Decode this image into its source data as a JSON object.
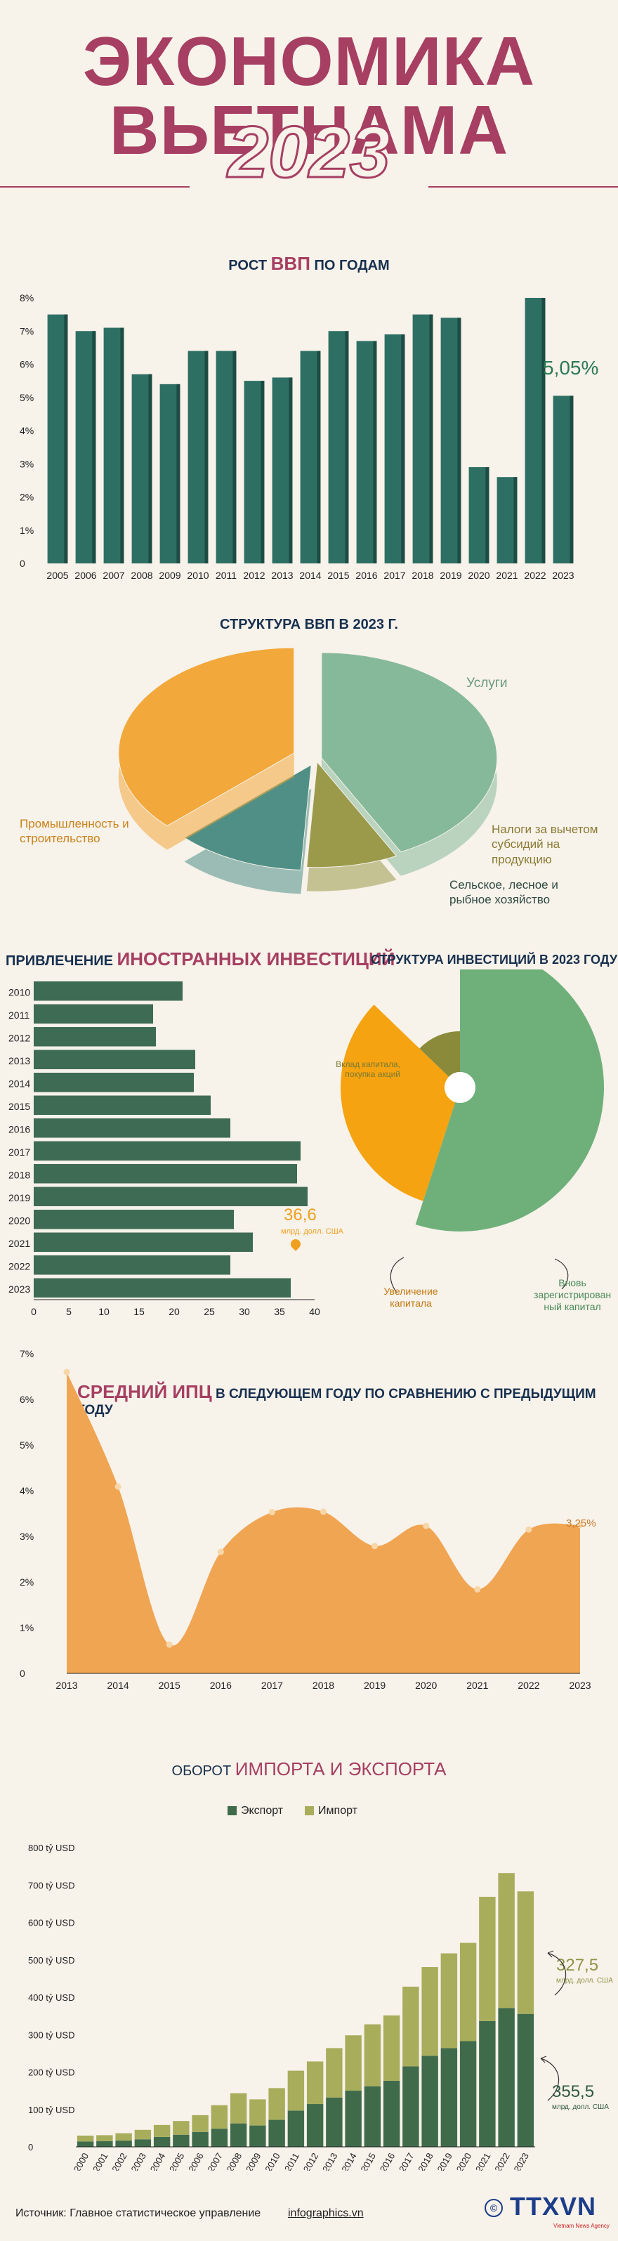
{
  "header": {
    "title": "ЭКОНОМИКА ВЬЕТНАМА",
    "year": "2023"
  },
  "gdp_growth": {
    "title_pre": "РОСТ",
    "title_hl": "ВВП",
    "title_post": "ПО ГОДАМ",
    "callout": "5,05%",
    "colors": {
      "bar": "#2e6f64",
      "bar_side": "#1d4c44"
    }
  },
  "gdp_structure": {
    "title": "СТРУКТУРА ВВП В 2023 Г.",
    "labels": {
      "services": "Услуги",
      "industry": "Промышленность и строительство",
      "taxes": "Налоги за вычетом субсидий на продукцию",
      "agriculture": "Сельское, лесное и рыбное хозяйство"
    },
    "colors": {
      "services": "#86b99a",
      "industry": "#f2a83a",
      "taxes": "#9a9a4a",
      "agriculture": "#4f8f86"
    }
  },
  "fdi": {
    "title_pre": "ПРИВЛЕЧЕНИЕ",
    "title_hl": "ИНОСТРАННЫХ ИНВЕСТИЦИЙ",
    "value_label": "36,6",
    "unit_label": "млрд. долл. США",
    "colors": {
      "bar": "#3e6b53"
    }
  },
  "inv_structure": {
    "title": "СТРУКТУРА ИНВЕСТИЦИЙ В 2023 ГОДУ",
    "labels": {
      "capital_contrib": "Вклад капитала, покупка акций",
      "capital_increase": "Увеличение капитала",
      "new_registered": "Вновь зарегистрирован ный капитал"
    },
    "colors": {
      "new_registered": "#6fb07a",
      "capital_increase": "#f5a311",
      "capital_contrib": "#8a8a3a"
    }
  },
  "cpi": {
    "title_hl": "СРЕДНИЙ ИПЦ",
    "title_post": "В СЛЕДУЮЩЕМ ГОДУ ПО СРАВНЕНИЮ С ПРЕДЫДУЩИМ ГОДУ",
    "callout": "3,25%",
    "colors": {
      "area": "#f0a553",
      "point": "#f7d7a8"
    }
  },
  "trade": {
    "title_pre": "ОБОРОТ",
    "title_hl": "ИМПОРТА И ЭКСПОРТА",
    "legend_export": "Экспорт",
    "legend_import": "Импорт",
    "import_value": "327,5",
    "export_value": "355,5",
    "unit_label": "млрд. долл. США",
    "colors": {
      "export": "#3f6b4b",
      "import": "#a8ad5c"
    }
  },
  "footer": {
    "source": "Источник: Главное статистическое управление",
    "site": "infographics.vn",
    "logo": "TTXVN",
    "logo_sub": "Vietnam News Agency"
  },
  "chart_data": [
    {
      "type": "bar",
      "categories": [
        "2005",
        "2006",
        "2007",
        "2008",
        "2009",
        "2010",
        "2011",
        "2012",
        "2013",
        "2014",
        "2015",
        "2016",
        "2017",
        "2018",
        "2019",
        "2020",
        "2021",
        "2022",
        "2023"
      ],
      "values": [
        7.5,
        7.0,
        7.1,
        5.7,
        5.4,
        6.4,
        6.4,
        5.5,
        5.6,
        6.4,
        7.0,
        6.7,
        6.9,
        7.5,
        7.4,
        2.9,
        2.6,
        8.0,
        5.05
      ],
      "yticks": [
        "0",
        "1%",
        "2%",
        "3%",
        "4%",
        "5%",
        "6%",
        "7%",
        "8%"
      ],
      "ylim": [
        0,
        8
      ]
    },
    {
      "type": "pie",
      "categories": [
        "Услуги",
        "Налоги за вычетом субсидий на продукцию",
        "Сельское, лесное и рыбное хозяйство",
        "Промышленность и строительство"
      ],
      "values": [
        42.5,
        8.4,
        11.9,
        37.1
      ]
    },
    {
      "type": "bar",
      "orientation": "horizontal",
      "categories": [
        "2010",
        "2011",
        "2012",
        "2013",
        "2014",
        "2015",
        "2016",
        "2017",
        "2018",
        "2019",
        "2020",
        "2021",
        "2022",
        "2023"
      ],
      "values": [
        21.2,
        17.0,
        17.4,
        23.0,
        22.8,
        25.2,
        28.0,
        38.0,
        37.5,
        39.0,
        28.5,
        31.2,
        28.0,
        36.6
      ],
      "xticks": [
        "0",
        "5",
        "10",
        "15",
        "20",
        "25",
        "30",
        "35",
        "40"
      ],
      "xlim": [
        0,
        40
      ]
    },
    {
      "type": "pie",
      "categories": [
        "Вновь зарегистрирован ный капитал",
        "Увеличение капитала",
        "Вклад капитала, покупка акций"
      ],
      "values": [
        55.0,
        32.2,
        12.8
      ]
    },
    {
      "type": "area",
      "x": [
        "2013",
        "2014",
        "2015",
        "2016",
        "2017",
        "2018",
        "2019",
        "2020",
        "2021",
        "2022",
        "2023"
      ],
      "values": [
        6.6,
        4.09,
        0.63,
        2.66,
        3.53,
        3.54,
        2.79,
        3.23,
        1.84,
        3.15,
        3.25
      ],
      "yticks": [
        "0",
        "1%",
        "2%",
        "3%",
        "4%",
        "5%",
        "6%",
        "7%"
      ],
      "ylim": [
        0,
        7
      ]
    },
    {
      "type": "bar",
      "stacked": true,
      "categories": [
        "2000",
        "2001",
        "2002",
        "2003",
        "2004",
        "2005",
        "2006",
        "2007",
        "2008",
        "2009",
        "2010",
        "2011",
        "2012",
        "2013",
        "2014",
        "2015",
        "2016",
        "2017",
        "2018",
        "2019",
        "2020",
        "2021",
        "2022",
        "2023"
      ],
      "series": [
        {
          "name": "Экспорт",
          "values": [
            14.5,
            15.0,
            16.7,
            20.1,
            26.5,
            32.4,
            39.8,
            48.6,
            62.7,
            57.1,
            72.2,
            96.9,
            114.5,
            132.0,
            150.2,
            162.0,
            176.6,
            215.1,
            243.5,
            264.2,
            282.6,
            336.3,
            371.3,
            355.5
          ]
        },
        {
          "name": "Импорт",
          "values": [
            15.6,
            16.2,
            19.7,
            25.3,
            32.0,
            36.8,
            44.9,
            62.8,
            80.7,
            69.9,
            84.8,
            106.7,
            113.8,
            132.0,
            148.0,
            165.6,
            174.8,
            213.2,
            237.2,
            253.1,
            262.7,
            332.2,
            360.7,
            327.5
          ]
        }
      ],
      "yticks": [
        "0",
        "100 tỷ USD",
        "200 tỷ USD",
        "300 tỷ USD",
        "400 tỷ USD",
        "500 tỷ USD",
        "600 tỷ USD",
        "700 tỷ USD",
        "800 tỷ USD"
      ],
      "ylim": [
        0,
        800
      ]
    }
  ]
}
